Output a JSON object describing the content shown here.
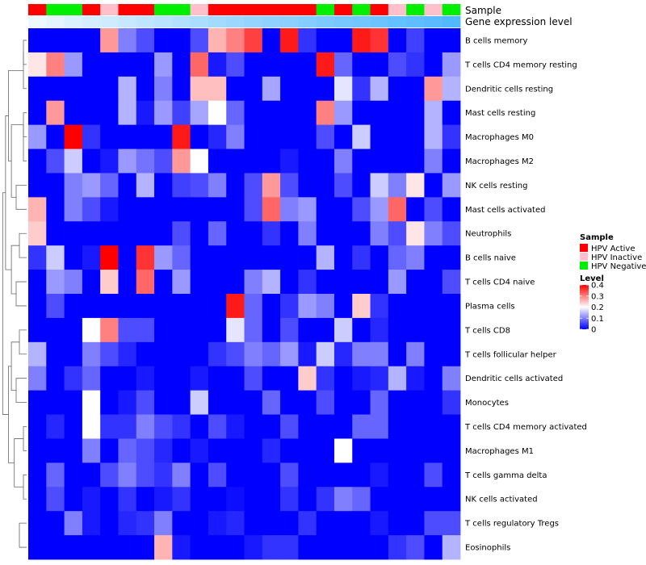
{
  "chart_data": {
    "type": "heatmap",
    "annotations": {
      "sample_label": "Sample",
      "gene_label": "Gene expression level",
      "sample_groups": [
        "Active",
        "Negative",
        "Negative",
        "Active",
        "Inactive",
        "Active",
        "Active",
        "Negative",
        "Negative",
        "Inactive",
        "Active",
        "Active",
        "Active",
        "Active",
        "Active",
        "Active",
        "Negative",
        "Active",
        "Negative",
        "Active",
        "Inactive",
        "Negative",
        "Inactive",
        "Negative"
      ],
      "gene_expression": [
        0.1,
        0.15,
        0.2,
        0.24,
        0.28,
        0.32,
        0.36,
        0.4,
        0.44,
        0.48,
        0.52,
        0.56,
        0.6,
        0.63,
        0.66,
        0.7,
        0.74,
        0.77,
        0.8,
        0.84,
        0.88,
        0.91,
        0.94,
        0.98
      ]
    },
    "rows": [
      "B cells memory",
      "T cells CD4 memory resting",
      "Dendritic cells resting",
      "Mast cells resting",
      "Macrophages M0",
      "Macrophages M2",
      "NK cells resting",
      "Mast cells activated",
      "Neutrophils",
      "B cells naive",
      "T cells CD4 naive",
      "Plasma cells",
      "T cells CD8",
      "T cells follicular helper",
      "Dendritic cells activated",
      "Monocytes",
      "T cells CD4 memory activated",
      "Macrophages M1",
      "T cells gamma delta",
      "NK cells activated",
      "T cells regulatory  Tregs",
      "Eosinophils"
    ],
    "values": [
      [
        0.0,
        0.0,
        0.0,
        0.0,
        0.28,
        0.1,
        0.06,
        0.0,
        0.0,
        0.06,
        0.26,
        0.3,
        0.35,
        0.0,
        0.38,
        0.04,
        0.0,
        0.0,
        0.38,
        0.36,
        0.0,
        0.05,
        0.0,
        0.0
      ],
      [
        0.22,
        0.3,
        0.12,
        0.0,
        0.0,
        0.0,
        0.0,
        0.12,
        0.0,
        0.32,
        0.02,
        0.06,
        0.0,
        0.0,
        0.0,
        0.0,
        0.38,
        0.08,
        0.0,
        0.0,
        0.06,
        0.04,
        0.0,
        0.12
      ],
      [
        0.0,
        0.0,
        0.0,
        0.0,
        0.0,
        0.14,
        0.0,
        0.1,
        0.0,
        0.25,
        0.25,
        0.0,
        0.0,
        0.13,
        0.0,
        0.0,
        0.0,
        0.18,
        0.04,
        0.14,
        0.0,
        0.0,
        0.28,
        0.14
      ],
      [
        0.0,
        0.28,
        0.0,
        0.0,
        0.0,
        0.14,
        0.02,
        0.12,
        0.05,
        0.13,
        0.2,
        0.08,
        0.0,
        0.0,
        0.0,
        0.0,
        0.3,
        0.12,
        0.0,
        0.0,
        0.0,
        0.0,
        0.14,
        0.0
      ],
      [
        0.12,
        0.0,
        0.4,
        0.04,
        0.0,
        0.0,
        0.0,
        0.0,
        0.38,
        0.0,
        0.03,
        0.1,
        0.0,
        0.0,
        0.0,
        0.0,
        0.06,
        0.0,
        0.16,
        0.0,
        0.0,
        0.0,
        0.14,
        0.04
      ],
      [
        0.0,
        0.06,
        0.16,
        0.0,
        0.02,
        0.12,
        0.09,
        0.06,
        0.28,
        0.2,
        0.0,
        0.0,
        0.0,
        0.0,
        0.02,
        0.0,
        0.0,
        0.1,
        0.0,
        0.0,
        0.0,
        0.0,
        0.1,
        0.0
      ],
      [
        0.0,
        0.0,
        0.1,
        0.12,
        0.08,
        0.0,
        0.14,
        0.0,
        0.05,
        0.06,
        0.1,
        0.0,
        0.06,
        0.28,
        0.06,
        0.0,
        0.0,
        0.06,
        0.0,
        0.16,
        0.1,
        0.22,
        0.0,
        0.12
      ],
      [
        0.26,
        0.0,
        0.1,
        0.06,
        0.02,
        0.0,
        0.0,
        0.0,
        0.0,
        0.0,
        0.0,
        0.0,
        0.06,
        0.32,
        0.1,
        0.12,
        0.0,
        0.0,
        0.06,
        0.12,
        0.32,
        0.0,
        0.06,
        0.0
      ],
      [
        0.24,
        0.0,
        0.0,
        0.0,
        0.0,
        0.0,
        0.0,
        0.0,
        0.06,
        0.0,
        0.08,
        0.0,
        0.0,
        0.04,
        0.0,
        0.1,
        0.0,
        0.0,
        0.0,
        0.1,
        0.06,
        0.22,
        0.1,
        0.06
      ],
      [
        0.04,
        0.16,
        0.0,
        0.02,
        0.4,
        0.0,
        0.36,
        0.12,
        0.08,
        0.0,
        0.0,
        0.0,
        0.0,
        0.0,
        0.0,
        0.0,
        0.14,
        0.0,
        0.04,
        0.0,
        0.08,
        0.1,
        0.0,
        0.0
      ],
      [
        0.0,
        0.12,
        0.1,
        0.0,
        0.24,
        0.0,
        0.32,
        0.0,
        0.12,
        0.0,
        0.0,
        0.0,
        0.1,
        0.14,
        0.0,
        0.04,
        0.0,
        0.0,
        0.0,
        0.0,
        0.12,
        0.0,
        0.0,
        0.06
      ],
      [
        0.0,
        0.06,
        0.0,
        0.0,
        0.0,
        0.0,
        0.0,
        0.0,
        0.0,
        0.0,
        0.0,
        0.38,
        0.08,
        0.0,
        0.04,
        0.12,
        0.1,
        0.0,
        0.24,
        0.04,
        0.0,
        0.0,
        0.0,
        0.0
      ],
      [
        0.0,
        0.0,
        0.0,
        0.2,
        0.3,
        0.06,
        0.06,
        0.0,
        0.0,
        0.0,
        0.0,
        0.18,
        0.08,
        0.0,
        0.06,
        0.0,
        0.0,
        0.16,
        0.0,
        0.03,
        0.0,
        0.0,
        0.0,
        0.0
      ],
      [
        0.14,
        0.0,
        0.0,
        0.1,
        0.06,
        0.03,
        0.0,
        0.0,
        0.0,
        0.0,
        0.04,
        0.06,
        0.1,
        0.08,
        0.12,
        0.02,
        0.16,
        0.03,
        0.1,
        0.1,
        0.0,
        0.1,
        0.0,
        0.0
      ],
      [
        0.1,
        0.0,
        0.04,
        0.08,
        0.0,
        0.0,
        0.02,
        0.0,
        0.0,
        0.02,
        0.0,
        0.0,
        0.06,
        0.0,
        0.0,
        0.24,
        0.04,
        0.0,
        0.02,
        0.03,
        0.14,
        0.02,
        0.0,
        0.1
      ],
      [
        0.0,
        0.0,
        0.0,
        0.2,
        0.0,
        0.02,
        0.06,
        0.0,
        0.0,
        0.16,
        0.0,
        0.0,
        0.0,
        0.08,
        0.0,
        0.0,
        0.06,
        0.0,
        0.0,
        0.08,
        0.0,
        0.0,
        0.0,
        0.04
      ],
      [
        0.0,
        0.03,
        0.0,
        0.2,
        0.04,
        0.04,
        0.1,
        0.06,
        0.04,
        0.0,
        0.06,
        0.02,
        0.0,
        0.0,
        0.06,
        0.0,
        0.0,
        0.0,
        0.08,
        0.08,
        0.0,
        0.0,
        0.0,
        0.0
      ],
      [
        0.0,
        0.0,
        0.0,
        0.1,
        0.0,
        0.08,
        0.06,
        0.03,
        0.0,
        0.02,
        0.0,
        0.0,
        0.0,
        0.03,
        0.0,
        0.0,
        0.0,
        0.2,
        0.0,
        0.0,
        0.0,
        0.0,
        0.0,
        0.0
      ],
      [
        0.0,
        0.08,
        0.0,
        0.0,
        0.06,
        0.1,
        0.06,
        0.04,
        0.1,
        0.0,
        0.06,
        0.0,
        0.0,
        0.0,
        0.06,
        0.0,
        0.0,
        0.0,
        0.0,
        0.02,
        0.0,
        0.0,
        0.06,
        0.0
      ],
      [
        0.0,
        0.06,
        0.0,
        0.02,
        0.0,
        0.04,
        0.0,
        0.02,
        0.04,
        0.0,
        0.0,
        0.01,
        0.0,
        0.0,
        0.04,
        0.0,
        0.04,
        0.1,
        0.08,
        0.0,
        0.0,
        0.0,
        0.0,
        0.0
      ],
      [
        0.0,
        0.0,
        0.1,
        0.02,
        0.0,
        0.03,
        0.04,
        0.1,
        0.0,
        0.0,
        0.02,
        0.03,
        0.0,
        0.0,
        0.0,
        0.04,
        0.0,
        0.0,
        0.0,
        0.02,
        0.0,
        0.0,
        0.06,
        0.06
      ],
      [
        0.0,
        0.0,
        0.0,
        0.0,
        0.0,
        0.0,
        0.0,
        0.26,
        0.02,
        0.0,
        0.0,
        0.0,
        0.02,
        0.04,
        0.04,
        0.0,
        0.0,
        0.0,
        0.0,
        0.0,
        0.04,
        0.06,
        0.0,
        0.14
      ]
    ],
    "legend": {
      "sample_title": "Sample",
      "sample_items": [
        {
          "key": "Active",
          "label": "HPV Active",
          "color": "#ff0000"
        },
        {
          "key": "Inactive",
          "label": "HPV Inactive",
          "color": "#ffc0cb"
        },
        {
          "key": "Negative",
          "label": "HPV Negative",
          "color": "#00ee00"
        }
      ],
      "level_title": "Level",
      "level_ticks": [
        "0.4",
        "0.3",
        "0.2",
        "0.1",
        "0"
      ],
      "level_range": [
        0,
        0.4
      ],
      "colors": {
        "low": "#0000ff",
        "mid": "#ffffff",
        "high": "#ff0000"
      },
      "gene_colors": {
        "low": "#ffffff",
        "high": "#4fb8ff"
      }
    }
  }
}
